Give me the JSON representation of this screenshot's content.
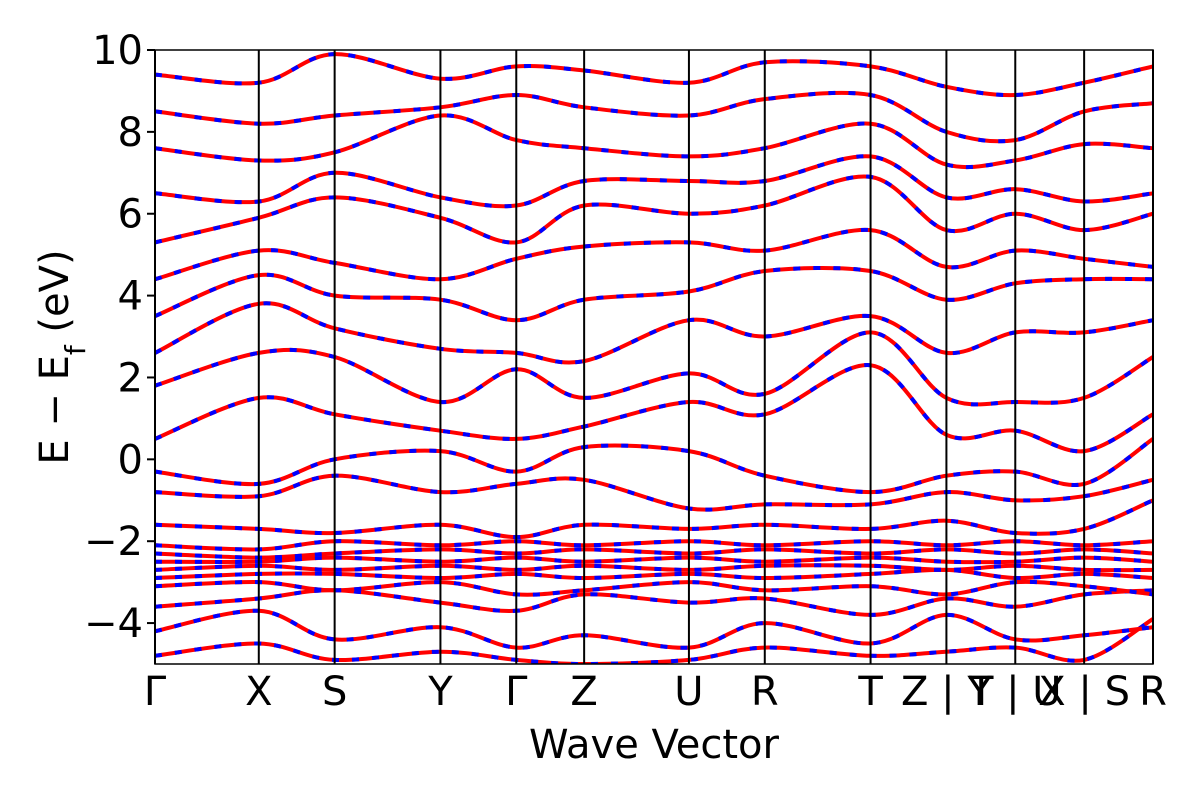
{
  "chart_data": {
    "type": "line",
    "title": "",
    "xlabel": "Wave Vector",
    "ylabel": "E − E",
    "ylabel_sub": "f",
    "ylabel_unit": " (eV)",
    "ylim": [
      -5,
      10
    ],
    "yticks": [
      -4,
      -2,
      0,
      2,
      4,
      6,
      8,
      10
    ],
    "ytick_labels": [
      "−4",
      "−2",
      "0",
      "2",
      "4",
      "6",
      "8",
      "10"
    ],
    "kpoints": [
      {
        "x": 0.0,
        "label": "Γ"
      },
      {
        "x": 0.104,
        "label": "X"
      },
      {
        "x": 0.18,
        "label": "S"
      },
      {
        "x": 0.286,
        "label": "Y"
      },
      {
        "x": 0.362,
        "label": "Γ"
      },
      {
        "x": 0.43,
        "label": "Z"
      },
      {
        "x": 0.535,
        "label": "U"
      },
      {
        "x": 0.611,
        "label": "R"
      },
      {
        "x": 0.717,
        "label": "T"
      },
      {
        "x": 0.793,
        "label": "Z | Y"
      },
      {
        "x": 0.862,
        "label": "T | U"
      },
      {
        "x": 0.931,
        "label": "X | S"
      },
      {
        "x": 1.0,
        "label": "R"
      }
    ],
    "series": [
      {
        "line_color": "#ff0000",
        "overlay_color": "#0000ff",
        "style": "solid + dashed overlay"
      }
    ],
    "bands": [
      {
        "x": [
          0,
          0.104,
          0.18,
          0.286,
          0.362,
          0.43,
          0.535,
          0.611,
          0.717,
          0.793,
          0.862,
          0.931,
          1.0
        ],
        "y": [
          -4.8,
          -4.5,
          -4.9,
          -4.7,
          -4.9,
          -5.0,
          -4.9,
          -4.6,
          -4.8,
          -4.7,
          -4.6,
          -4.9,
          -3.9
        ]
      },
      {
        "x": [
          0,
          0.104,
          0.18,
          0.286,
          0.362,
          0.43,
          0.535,
          0.611,
          0.717,
          0.793,
          0.862,
          0.931,
          1.0
        ],
        "y": [
          -4.2,
          -3.7,
          -4.4,
          -4.1,
          -4.6,
          -4.3,
          -4.6,
          -4.0,
          -4.5,
          -3.8,
          -4.4,
          -4.3,
          -4.1
        ]
      },
      {
        "x": [
          0,
          0.104,
          0.18,
          0.286,
          0.362,
          0.43,
          0.535,
          0.611,
          0.717,
          0.793,
          0.862,
          0.931,
          1.0
        ],
        "y": [
          -3.6,
          -3.4,
          -3.2,
          -3.5,
          -3.7,
          -3.3,
          -3.5,
          -3.4,
          -3.8,
          -3.4,
          -3.6,
          -3.3,
          -3.2
        ]
      },
      {
        "x": [
          0,
          0.104,
          0.18,
          0.286,
          0.362,
          0.43,
          0.535,
          0.611,
          0.717,
          0.793,
          0.862,
          0.931,
          1.0
        ],
        "y": [
          -3.1,
          -3.0,
          -3.2,
          -3.0,
          -3.3,
          -3.2,
          -3.0,
          -3.2,
          -3.1,
          -3.3,
          -3.0,
          -3.1,
          -3.3
        ]
      },
      {
        "x": [
          0,
          0.104,
          0.18,
          0.286,
          0.362,
          0.43,
          0.535,
          0.611,
          0.717,
          0.793,
          0.862,
          0.931,
          1.0
        ],
        "y": [
          -2.9,
          -2.8,
          -2.8,
          -2.9,
          -2.8,
          -2.9,
          -2.8,
          -2.9,
          -2.8,
          -2.7,
          -2.9,
          -2.8,
          -2.9
        ]
      },
      {
        "x": [
          0,
          0.104,
          0.18,
          0.286,
          0.362,
          0.43,
          0.535,
          0.611,
          0.717,
          0.793,
          0.862,
          0.931,
          1.0
        ],
        "y": [
          -2.7,
          -2.6,
          -2.7,
          -2.6,
          -2.7,
          -2.6,
          -2.7,
          -2.6,
          -2.6,
          -2.7,
          -2.6,
          -2.7,
          -2.7
        ]
      },
      {
        "x": [
          0,
          0.104,
          0.18,
          0.286,
          0.362,
          0.43,
          0.535,
          0.611,
          0.717,
          0.793,
          0.862,
          0.931,
          1.0
        ],
        "y": [
          -2.5,
          -2.5,
          -2.4,
          -2.5,
          -2.4,
          -2.5,
          -2.4,
          -2.5,
          -2.4,
          -2.5,
          -2.5,
          -2.4,
          -2.5
        ]
      },
      {
        "x": [
          0,
          0.104,
          0.18,
          0.286,
          0.362,
          0.43,
          0.535,
          0.611,
          0.717,
          0.793,
          0.862,
          0.931,
          1.0
        ],
        "y": [
          -2.3,
          -2.4,
          -2.3,
          -2.2,
          -2.3,
          -2.2,
          -2.3,
          -2.2,
          -2.3,
          -2.2,
          -2.3,
          -2.2,
          -2.3
        ]
      },
      {
        "x": [
          0,
          0.104,
          0.18,
          0.286,
          0.362,
          0.43,
          0.535,
          0.611,
          0.717,
          0.793,
          0.862,
          0.931,
          1.0
        ],
        "y": [
          -2.1,
          -2.2,
          -2.0,
          -2.1,
          -2.0,
          -2.1,
          -2.0,
          -2.1,
          -2.0,
          -2.1,
          -2.0,
          -2.1,
          -2.0
        ]
      },
      {
        "x": [
          0,
          0.104,
          0.18,
          0.286,
          0.362,
          0.43,
          0.535,
          0.611,
          0.717,
          0.793,
          0.862,
          0.931,
          1.0
        ],
        "y": [
          -1.6,
          -1.7,
          -1.8,
          -1.6,
          -1.9,
          -1.6,
          -1.7,
          -1.6,
          -1.7,
          -1.5,
          -1.8,
          -1.7,
          -1.0
        ]
      },
      {
        "x": [
          0,
          0.104,
          0.18,
          0.286,
          0.362,
          0.43,
          0.535,
          0.611,
          0.717,
          0.793,
          0.862,
          0.931,
          1.0
        ],
        "y": [
          -0.8,
          -0.9,
          -0.4,
          -0.8,
          -0.6,
          -0.5,
          -1.2,
          -1.1,
          -1.1,
          -0.8,
          -1.0,
          -0.9,
          -0.5
        ]
      },
      {
        "x": [
          0,
          0.104,
          0.18,
          0.286,
          0.362,
          0.43,
          0.535,
          0.611,
          0.717,
          0.793,
          0.862,
          0.931,
          1.0
        ],
        "y": [
          -0.3,
          -0.6,
          0.0,
          0.2,
          -0.3,
          0.3,
          0.2,
          -0.4,
          -0.8,
          -0.4,
          -0.3,
          -0.6,
          0.5
        ]
      },
      {
        "x": [
          0,
          0.104,
          0.18,
          0.286,
          0.362,
          0.43,
          0.535,
          0.611,
          0.717,
          0.793,
          0.862,
          0.931,
          1.0
        ],
        "y": [
          0.5,
          1.5,
          1.1,
          0.7,
          0.5,
          0.8,
          1.4,
          1.1,
          2.3,
          0.6,
          0.7,
          0.2,
          1.1
        ]
      },
      {
        "x": [
          0,
          0.104,
          0.18,
          0.286,
          0.362,
          0.43,
          0.535,
          0.611,
          0.717,
          0.793,
          0.862,
          0.931,
          1.0
        ],
        "y": [
          1.8,
          2.6,
          2.5,
          1.4,
          2.2,
          1.5,
          2.1,
          1.6,
          3.1,
          1.5,
          1.4,
          1.5,
          2.5
        ]
      },
      {
        "x": [
          0,
          0.104,
          0.18,
          0.286,
          0.362,
          0.43,
          0.535,
          0.611,
          0.717,
          0.793,
          0.862,
          0.931,
          1.0
        ],
        "y": [
          2.6,
          3.8,
          3.2,
          2.7,
          2.6,
          2.4,
          3.4,
          3.0,
          3.5,
          2.6,
          3.1,
          3.1,
          3.4
        ]
      },
      {
        "x": [
          0,
          0.104,
          0.18,
          0.286,
          0.362,
          0.43,
          0.535,
          0.611,
          0.717,
          0.793,
          0.862,
          0.931,
          1.0
        ],
        "y": [
          3.5,
          4.5,
          4.0,
          3.9,
          3.4,
          3.9,
          4.1,
          4.6,
          4.6,
          3.9,
          4.3,
          4.4,
          4.4
        ]
      },
      {
        "x": [
          0,
          0.104,
          0.18,
          0.286,
          0.362,
          0.43,
          0.535,
          0.611,
          0.717,
          0.793,
          0.862,
          0.931,
          1.0
        ],
        "y": [
          4.4,
          5.1,
          4.8,
          4.4,
          4.9,
          5.2,
          5.3,
          5.1,
          5.6,
          4.7,
          5.1,
          4.9,
          4.7
        ]
      },
      {
        "x": [
          0,
          0.104,
          0.18,
          0.286,
          0.362,
          0.43,
          0.535,
          0.611,
          0.717,
          0.793,
          0.862,
          0.931,
          1.0
        ],
        "y": [
          5.3,
          5.9,
          6.4,
          5.9,
          5.3,
          6.2,
          6.0,
          6.2,
          6.9,
          5.6,
          6.0,
          5.6,
          6.0
        ]
      },
      {
        "x": [
          0,
          0.104,
          0.18,
          0.286,
          0.362,
          0.43,
          0.535,
          0.611,
          0.717,
          0.793,
          0.862,
          0.931,
          1.0
        ],
        "y": [
          6.5,
          6.3,
          7.0,
          6.4,
          6.2,
          6.8,
          6.8,
          6.8,
          7.4,
          6.4,
          6.6,
          6.3,
          6.5
        ]
      },
      {
        "x": [
          0,
          0.104,
          0.18,
          0.286,
          0.362,
          0.43,
          0.535,
          0.611,
          0.717,
          0.793,
          0.862,
          0.931,
          1.0
        ],
        "y": [
          7.6,
          7.3,
          7.5,
          8.4,
          7.8,
          7.6,
          7.4,
          7.6,
          8.2,
          7.2,
          7.3,
          7.7,
          7.6
        ]
      },
      {
        "x": [
          0,
          0.104,
          0.18,
          0.286,
          0.362,
          0.43,
          0.535,
          0.611,
          0.717,
          0.793,
          0.862,
          0.931,
          1.0
        ],
        "y": [
          8.5,
          8.2,
          8.4,
          8.6,
          8.9,
          8.6,
          8.4,
          8.8,
          8.9,
          8.0,
          7.8,
          8.5,
          8.7
        ]
      },
      {
        "x": [
          0,
          0.104,
          0.18,
          0.286,
          0.362,
          0.43,
          0.535,
          0.611,
          0.717,
          0.793,
          0.862,
          0.931,
          1.0
        ],
        "y": [
          9.4,
          9.2,
          9.9,
          9.3,
          9.6,
          9.5,
          9.2,
          9.7,
          9.6,
          9.1,
          8.9,
          9.2,
          9.6
        ]
      }
    ]
  }
}
